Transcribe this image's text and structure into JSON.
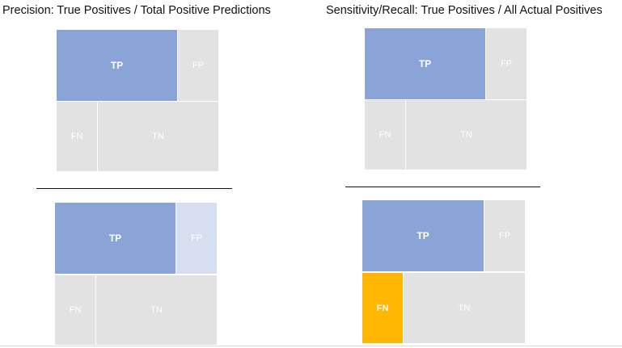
{
  "titles": {
    "precision": "Precision: True Positives / Total Positive Predictions",
    "recall": "Sensitivity/Recall: True Positives / All Actual Positives"
  },
  "labels": {
    "tp": "TP",
    "fp": "FP",
    "fn": "FN",
    "tn": "TN"
  },
  "colors": {
    "tp_blue": "#8aa4d8",
    "neutral_grey": "#e3e2e3",
    "highlight_fp_light_blue": "#d6deef",
    "highlight_fn_orange": "#ffb703"
  },
  "quadrants": [
    {
      "panel": "precision-top",
      "highlight": "none"
    },
    {
      "panel": "precision-bottom",
      "highlight": "FP"
    },
    {
      "panel": "recall-top",
      "highlight": "none"
    },
    {
      "panel": "recall-bottom",
      "highlight": "FN"
    }
  ]
}
